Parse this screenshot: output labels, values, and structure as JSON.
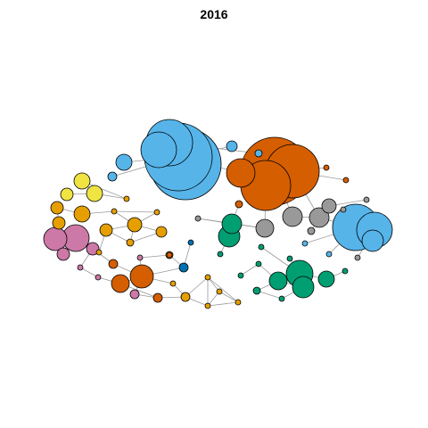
{
  "title": "2016",
  "colors": {
    "light_blue": "#56B4E9",
    "orange_red": "#D55E00",
    "green": "#009E73",
    "yellow": "#F0E442",
    "orange": "#E69F00",
    "pink": "#CC79A7",
    "gray": "#999999",
    "dark_blue": "#0072B2"
  }
}
